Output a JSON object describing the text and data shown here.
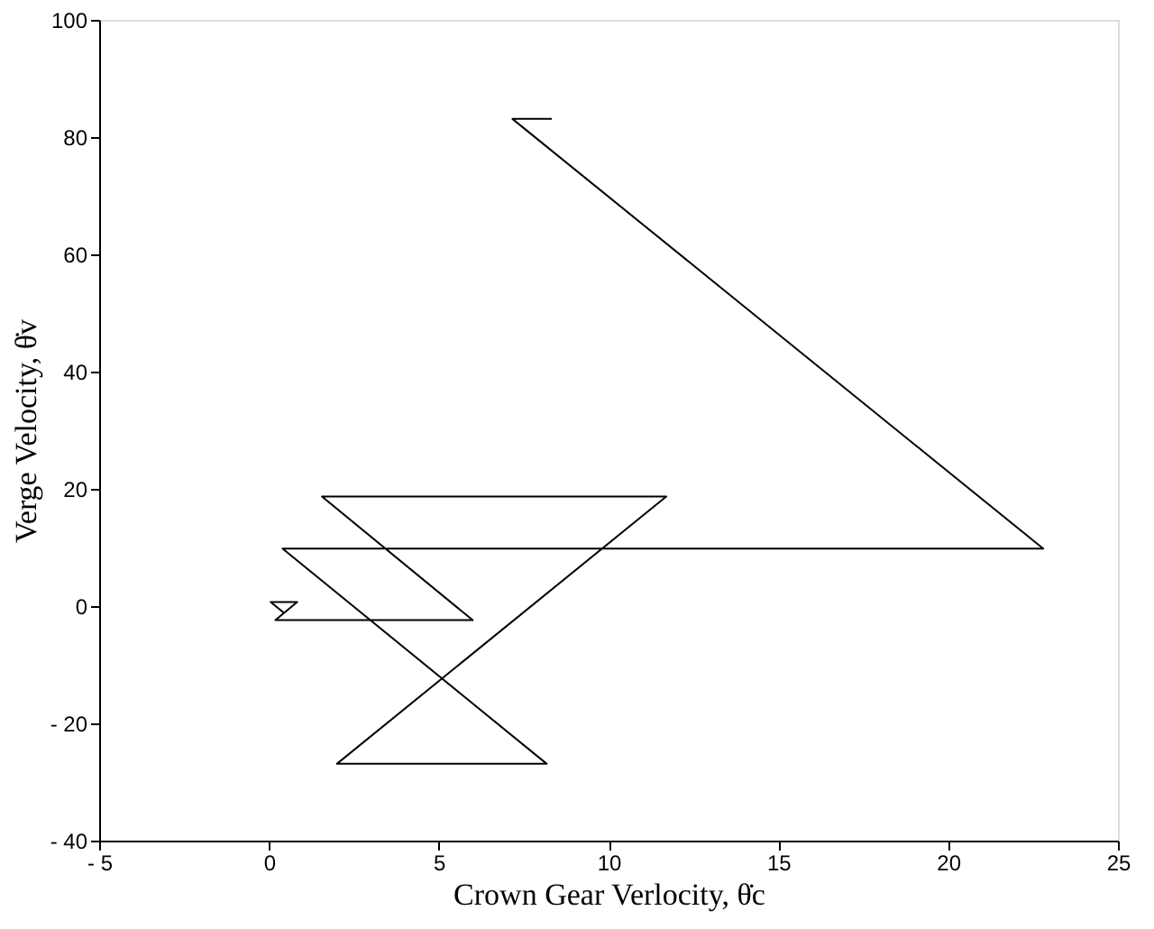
{
  "chart_data": {
    "type": "line",
    "xlabel": "Crown Gear Verlocity, θ̇c",
    "ylabel": "Verge Velocity, θ̇v",
    "x": [
      8.33,
      7.17,
      22.8,
      0.4,
      8.18,
      2.0,
      11.7,
      1.56,
      6.0,
      0.19,
      0.83,
      0.05,
      0.45
    ],
    "series": [
      {
        "color": "#000000",
        "values": [
          83.1,
          83.1,
          9.8,
          9.8,
          -26.9,
          -26.9,
          18.7,
          18.7,
          -2.4,
          -2.4,
          0.7,
          0.7,
          -1.2
        ]
      }
    ],
    "xlim": [
      -5,
      25
    ],
    "xticks": [
      {
        "value": -5,
        "label": "- 5"
      },
      0,
      5,
      10,
      15,
      20,
      25
    ],
    "ylim": [
      -40,
      100
    ],
    "yticks": [
      {
        "value": -40,
        "label": "- 40"
      },
      {
        "value": -20,
        "label": "- 20"
      },
      0,
      20,
      40,
      60,
      80,
      100
    ],
    "grid": false,
    "marker": "none",
    "line_style": "solid"
  }
}
